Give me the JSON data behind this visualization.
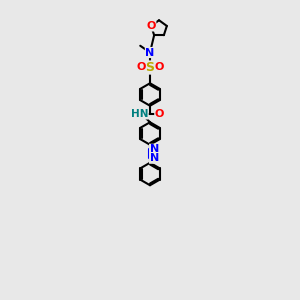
{
  "bg_color": "#e8e8e8",
  "bond_color": "#000000",
  "N_color": "#0000ff",
  "O_color": "#ff0000",
  "S_color": "#bbaa00",
  "H_color": "#008080",
  "line_width": 1.5,
  "figsize": [
    3.0,
    3.0
  ],
  "dpi": 100,
  "xlim": [
    0,
    10
  ],
  "ylim": [
    0,
    20
  ],
  "ring_r": 0.75,
  "thf_r": 0.55
}
